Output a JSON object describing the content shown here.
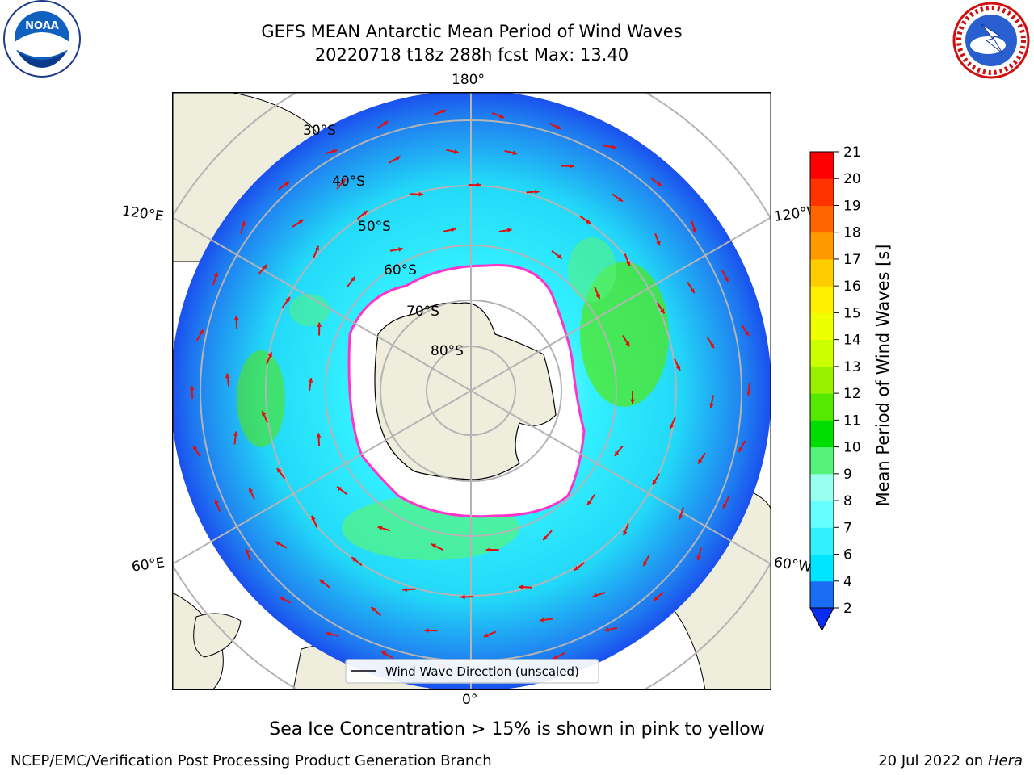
{
  "title_line1": "GEFS MEAN Antarctic Mean Period of Wind Waves",
  "title_line2": "20220718 t18z 288h fcst   Max: 13.40",
  "subnote": "Sea Ice Concentration > 15% is shown in pink to yellow",
  "footer_left": "NCEP/EMC/Verification Post Processing Product Generation Branch",
  "footer_date": "20 Jul 2022 on ",
  "footer_host": "Hera",
  "logos": {
    "noaa_text": "NOAA",
    "nws_text": "NATIONAL WEATHER SERVICE"
  },
  "legend_label": "Wind Wave Direction (unscaled)",
  "colors": {
    "arrow": "#e01010",
    "land": "#efeddc",
    "sea_ice_edge": "#ff33cc",
    "grid": "#b4b4b4"
  },
  "chart_data": {
    "type": "heatmap",
    "projection": "south-polar-stereographic",
    "variable": "Mean Period of Wind Waves",
    "units": "s",
    "max_value": 13.4,
    "colorbar": {
      "label": "Mean Period of Wind Waves [s]",
      "ticks": [
        "2",
        "4",
        "6",
        "7",
        "8",
        "9",
        "10",
        "11",
        "12",
        "13",
        "14",
        "15",
        "16",
        "17",
        "18",
        "19",
        "20",
        "21"
      ],
      "extend": "min",
      "colors": [
        "#0a2cf0",
        "#1a6cf5",
        "#00e5ff",
        "#33f0ff",
        "#66ffff",
        "#99ffee",
        "#55f37a",
        "#00dd00",
        "#55e800",
        "#99f000",
        "#ccff00",
        "#eeff00",
        "#ffee00",
        "#ffcc00",
        "#ff9900",
        "#ff6600",
        "#ff3300",
        "#ff0000"
      ]
    },
    "lat_labels": [
      "30°S",
      "40°S",
      "50°S",
      "60°S",
      "70°S",
      "80°S"
    ],
    "lon_labels": {
      "top": "180°",
      "bottom": "0°",
      "upper_left": "120°E",
      "upper_right": "120°W",
      "lower_left": "60°E",
      "lower_right": "60°W"
    },
    "overlays": [
      "wind wave direction arrows",
      "sea ice concentration > 15%"
    ]
  }
}
